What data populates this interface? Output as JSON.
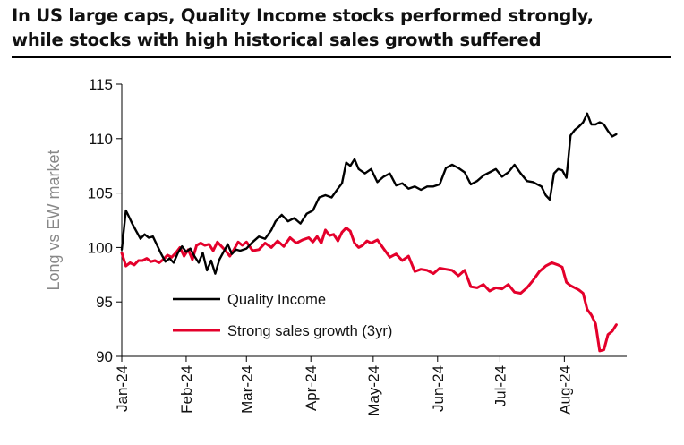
{
  "title_lines": [
    "In US large caps, Quality Income stocks performed strongly,",
    "while stocks with high historical sales growth suffered"
  ],
  "chart_data": {
    "type": "line",
    "title": "In US large caps, Quality Income stocks performed strongly, while stocks with high historical sales growth suffered",
    "xlabel": "",
    "ylabel": "Long vs EW market",
    "ylim": [
      90,
      115
    ],
    "yticks": [
      90,
      95,
      100,
      105,
      110,
      115
    ],
    "xlim": [
      "2024-01-01",
      "2024-08-31"
    ],
    "xticks": [
      "2024-01-01",
      "2024-02-01",
      "2024-03-01",
      "2024-04-01",
      "2024-05-01",
      "2024-06-01",
      "2024-07-01",
      "2024-08-01"
    ],
    "xtick_labels": [
      "Jan-24",
      "Feb-24",
      "Mar-24",
      "Apr-24",
      "May-24",
      "Jun-24",
      "Jul-24",
      "Aug-24"
    ],
    "grid": false,
    "legend_position": "lower-center",
    "series": [
      {
        "name": "Quality Income",
        "color": "#000000",
        "x": [
          "2024-01-01",
          "2024-01-03",
          "2024-01-04",
          "2024-01-06",
          "2024-01-08",
          "2024-01-10",
          "2024-01-12",
          "2024-01-14",
          "2024-01-16",
          "2024-01-18",
          "2024-01-20",
          "2024-01-22",
          "2024-01-24",
          "2024-01-26",
          "2024-01-28",
          "2024-01-30",
          "2024-02-01",
          "2024-02-03",
          "2024-02-05",
          "2024-02-07",
          "2024-02-09",
          "2024-02-11",
          "2024-02-13",
          "2024-02-15",
          "2024-02-17",
          "2024-02-19",
          "2024-02-21",
          "2024-02-23",
          "2024-02-25",
          "2024-02-27",
          "2024-03-01",
          "2024-03-04",
          "2024-03-07",
          "2024-03-10",
          "2024-03-13",
          "2024-03-15",
          "2024-03-18",
          "2024-03-21",
          "2024-03-24",
          "2024-03-27",
          "2024-03-30",
          "2024-04-02",
          "2024-04-05",
          "2024-04-08",
          "2024-04-11",
          "2024-04-14",
          "2024-04-16",
          "2024-04-18",
          "2024-04-20",
          "2024-04-22",
          "2024-04-24",
          "2024-04-27",
          "2024-04-30",
          "2024-05-03",
          "2024-05-06",
          "2024-05-09",
          "2024-05-12",
          "2024-05-15",
          "2024-05-18",
          "2024-05-21",
          "2024-05-24",
          "2024-05-27",
          "2024-05-30",
          "2024-06-02",
          "2024-06-05",
          "2024-06-08",
          "2024-06-11",
          "2024-06-14",
          "2024-06-17",
          "2024-06-20",
          "2024-06-23",
          "2024-06-26",
          "2024-06-29",
          "2024-07-02",
          "2024-07-05",
          "2024-07-08",
          "2024-07-11",
          "2024-07-14",
          "2024-07-17",
          "2024-07-19",
          "2024-07-21",
          "2024-07-23",
          "2024-07-25",
          "2024-07-27",
          "2024-07-29",
          "2024-07-31",
          "2024-08-02",
          "2024-08-04",
          "2024-08-06",
          "2024-08-08",
          "2024-08-10",
          "2024-08-12",
          "2024-08-14",
          "2024-08-16",
          "2024-08-18",
          "2024-08-20",
          "2024-08-22",
          "2024-08-24",
          "2024-08-26"
        ],
        "values": [
          99.8,
          103.4,
          103.0,
          102.2,
          101.5,
          100.8,
          101.2,
          100.9,
          101.0,
          100.2,
          99.4,
          98.7,
          99.0,
          98.6,
          99.5,
          100.1,
          99.6,
          99.9,
          99.2,
          98.6,
          99.5,
          97.9,
          98.8,
          97.6,
          98.9,
          99.6,
          100.3,
          99.4,
          99.8,
          99.7,
          99.9,
          100.5,
          101.0,
          100.8,
          101.6,
          102.4,
          103.0,
          102.4,
          102.7,
          102.2,
          103.1,
          103.4,
          104.6,
          104.8,
          104.6,
          105.4,
          105.9,
          107.8,
          107.5,
          108.1,
          107.2,
          106.8,
          107.2,
          106.0,
          106.5,
          106.8,
          105.7,
          105.9,
          105.4,
          105.6,
          105.3,
          105.6,
          105.6,
          105.8,
          107.3,
          107.6,
          107.3,
          106.9,
          105.8,
          106.1,
          106.6,
          106.9,
          107.2,
          106.5,
          106.9,
          107.6,
          106.8,
          106.1,
          106.0,
          105.8,
          105.6,
          104.8,
          104.4,
          106.8,
          107.2,
          107.1,
          106.4,
          110.3,
          110.8,
          111.1,
          111.5,
          112.3,
          111.3,
          111.3,
          111.5,
          111.3,
          110.7,
          110.2,
          110.4
        ]
      },
      {
        "name": "Strong sales growth (3yr)",
        "color": "#e4002b",
        "x": [
          "2024-01-01",
          "2024-01-03",
          "2024-01-05",
          "2024-01-07",
          "2024-01-09",
          "2024-01-11",
          "2024-01-13",
          "2024-01-15",
          "2024-01-17",
          "2024-01-19",
          "2024-01-21",
          "2024-01-23",
          "2024-01-25",
          "2024-01-27",
          "2024-01-29",
          "2024-01-31",
          "2024-02-02",
          "2024-02-04",
          "2024-02-06",
          "2024-02-08",
          "2024-02-10",
          "2024-02-12",
          "2024-02-14",
          "2024-02-16",
          "2024-02-18",
          "2024-02-20",
          "2024-02-22",
          "2024-02-24",
          "2024-02-26",
          "2024-02-28",
          "2024-03-01",
          "2024-03-04",
          "2024-03-07",
          "2024-03-10",
          "2024-03-13",
          "2024-03-16",
          "2024-03-19",
          "2024-03-22",
          "2024-03-25",
          "2024-03-28",
          "2024-03-31",
          "2024-04-02",
          "2024-04-04",
          "2024-04-06",
          "2024-04-08",
          "2024-04-10",
          "2024-04-12",
          "2024-04-14",
          "2024-04-16",
          "2024-04-18",
          "2024-04-20",
          "2024-04-22",
          "2024-04-24",
          "2024-04-26",
          "2024-04-28",
          "2024-04-30",
          "2024-05-03",
          "2024-05-06",
          "2024-05-09",
          "2024-05-12",
          "2024-05-15",
          "2024-05-18",
          "2024-05-21",
          "2024-05-24",
          "2024-05-27",
          "2024-05-30",
          "2024-06-02",
          "2024-06-05",
          "2024-06-08",
          "2024-06-11",
          "2024-06-14",
          "2024-06-17",
          "2024-06-20",
          "2024-06-23",
          "2024-06-26",
          "2024-06-29",
          "2024-07-02",
          "2024-07-05",
          "2024-07-08",
          "2024-07-11",
          "2024-07-14",
          "2024-07-17",
          "2024-07-20",
          "2024-07-23",
          "2024-07-26",
          "2024-07-29",
          "2024-07-31",
          "2024-08-02",
          "2024-08-04",
          "2024-08-06",
          "2024-08-08",
          "2024-08-10",
          "2024-08-12",
          "2024-08-14",
          "2024-08-16",
          "2024-08-18",
          "2024-08-20",
          "2024-08-22",
          "2024-08-24",
          "2024-08-26"
        ],
        "values": [
          99.5,
          98.3,
          98.6,
          98.4,
          98.8,
          98.8,
          99.0,
          98.7,
          98.8,
          98.6,
          98.9,
          99.3,
          99.1,
          99.5,
          100.0,
          99.2,
          99.8,
          98.9,
          100.2,
          100.4,
          100.2,
          100.3,
          99.7,
          100.5,
          100.1,
          99.7,
          99.2,
          99.8,
          100.5,
          100.2,
          100.5,
          99.7,
          99.8,
          100.4,
          100.0,
          100.6,
          100.1,
          100.9,
          100.4,
          100.7,
          100.9,
          100.5,
          101.0,
          100.4,
          101.6,
          101.1,
          101.2,
          100.6,
          101.4,
          101.8,
          101.5,
          100.4,
          100.0,
          100.2,
          100.6,
          100.4,
          100.7,
          99.9,
          99.1,
          99.4,
          98.8,
          99.2,
          97.8,
          98.0,
          97.9,
          97.6,
          98.1,
          98.0,
          97.9,
          97.4,
          97.9,
          96.4,
          96.3,
          96.6,
          96.0,
          96.3,
          96.2,
          96.6,
          95.9,
          95.8,
          96.3,
          97.0,
          97.8,
          98.3,
          98.6,
          98.4,
          98.2,
          96.8,
          96.5,
          96.3,
          96.1,
          95.8,
          94.3,
          93.8,
          93.0,
          90.5,
          90.6,
          92.0,
          92.3,
          92.9
        ]
      }
    ]
  }
}
